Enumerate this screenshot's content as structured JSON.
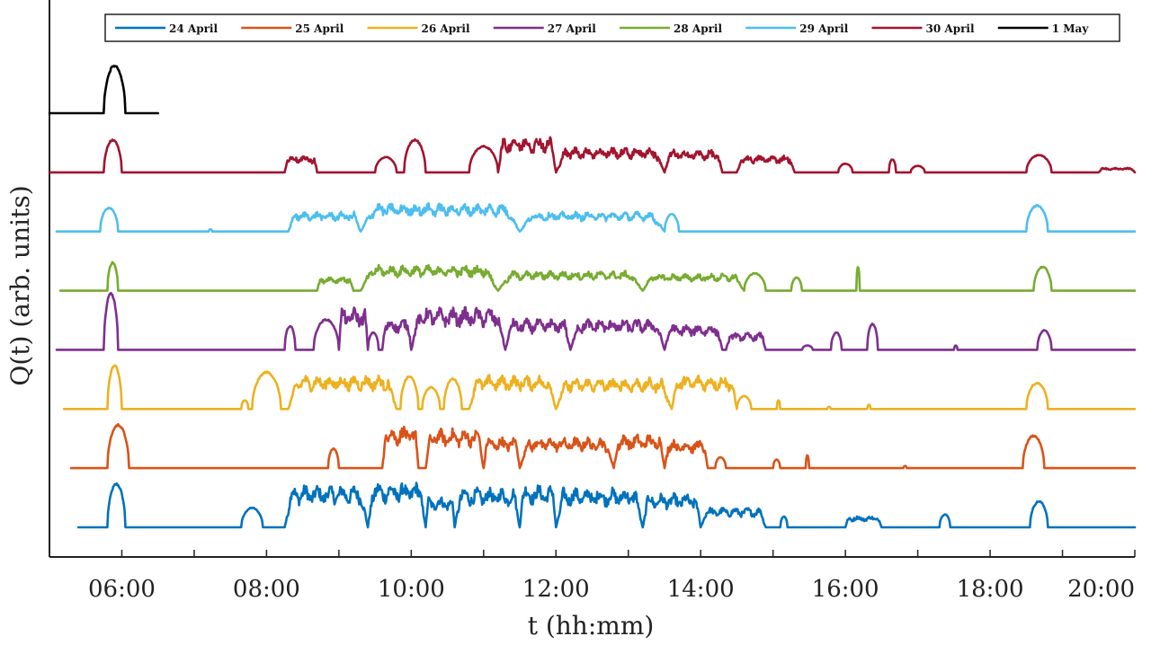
{
  "chart_data": {
    "type": "line",
    "title": "",
    "xlabel": "t (hh:mm)",
    "ylabel": "Q(t) (arb. units)",
    "xlim": [
      "05:00",
      "20:00"
    ],
    "xlim_hours": [
      5,
      20
    ],
    "x_ticks": [
      "06:00",
      "08:00",
      "10:00",
      "12:00",
      "14:00",
      "16:00",
      "18:00",
      "20:00"
    ],
    "y_ticks": [],
    "stacked_offsets": true,
    "legend_position": "top",
    "series": [
      {
        "name": "24 April",
        "color": "#0072BD",
        "start": 5.4,
        "end": 20.0,
        "active_segments": [
          [
            5.8,
            6.05,
            1.0
          ],
          [
            7.65,
            7.95,
            0.45
          ],
          [
            8.25,
            9.4,
            0.75
          ],
          [
            9.4,
            10.2,
            0.8
          ],
          [
            10.2,
            10.6,
            0.55
          ],
          [
            10.6,
            11.5,
            0.7
          ],
          [
            11.5,
            12.0,
            0.75
          ],
          [
            12.0,
            13.2,
            0.7
          ],
          [
            13.2,
            14.0,
            0.6
          ],
          [
            14.0,
            14.9,
            0.35
          ],
          [
            15.1,
            15.2,
            0.25
          ],
          [
            16.0,
            16.5,
            0.2
          ],
          [
            17.3,
            17.45,
            0.3
          ],
          [
            18.55,
            18.8,
            0.6
          ]
        ]
      },
      {
        "name": "25 April",
        "color": "#D95319",
        "start": 5.3,
        "end": 20.0,
        "active_segments": [
          [
            5.8,
            6.1,
            1.0
          ],
          [
            8.85,
            9.0,
            0.45
          ],
          [
            9.6,
            10.1,
            0.75
          ],
          [
            10.2,
            11.0,
            0.7
          ],
          [
            11.0,
            11.5,
            0.55
          ],
          [
            11.5,
            12.8,
            0.55
          ],
          [
            12.8,
            13.5,
            0.6
          ],
          [
            13.5,
            14.1,
            0.5
          ],
          [
            14.2,
            14.35,
            0.25
          ],
          [
            15.0,
            15.1,
            0.2
          ],
          [
            15.45,
            15.5,
            0.3
          ],
          [
            16.8,
            16.85,
            0.05
          ],
          [
            18.45,
            18.75,
            0.75
          ]
        ]
      },
      {
        "name": "26 April",
        "color": "#EDB120",
        "start": 5.2,
        "end": 20.0,
        "active_segments": [
          [
            5.8,
            6.0,
            1.0
          ],
          [
            7.65,
            7.75,
            0.2
          ],
          [
            7.8,
            8.2,
            0.85
          ],
          [
            8.3,
            9.8,
            0.6
          ],
          [
            9.85,
            10.1,
            0.75
          ],
          [
            10.15,
            10.4,
            0.5
          ],
          [
            10.45,
            10.7,
            0.7
          ],
          [
            10.8,
            12.0,
            0.6
          ],
          [
            12.0,
            13.6,
            0.55
          ],
          [
            13.6,
            14.5,
            0.6
          ],
          [
            14.5,
            14.7,
            0.3
          ],
          [
            15.05,
            15.1,
            0.2
          ],
          [
            15.75,
            15.8,
            0.05
          ],
          [
            16.3,
            16.35,
            0.1
          ],
          [
            18.5,
            18.8,
            0.6
          ]
        ]
      },
      {
        "name": "27 April",
        "color": "#7E2F8E",
        "start": 5.1,
        "end": 20.0,
        "active_segments": [
          [
            5.75,
            5.95,
            1.3
          ],
          [
            8.25,
            8.4,
            0.55
          ],
          [
            8.65,
            9.0,
            0.7
          ],
          [
            9.0,
            9.4,
            0.75
          ],
          [
            9.4,
            9.55,
            0.4
          ],
          [
            9.6,
            10.0,
            0.55
          ],
          [
            10.0,
            11.3,
            0.75
          ],
          [
            11.3,
            12.2,
            0.55
          ],
          [
            12.2,
            13.5,
            0.55
          ],
          [
            13.5,
            14.3,
            0.45
          ],
          [
            14.35,
            14.9,
            0.3
          ],
          [
            15.4,
            15.55,
            0.1
          ],
          [
            15.8,
            15.95,
            0.4
          ],
          [
            16.3,
            16.45,
            0.6
          ],
          [
            17.5,
            17.55,
            0.1
          ],
          [
            18.65,
            18.85,
            0.45
          ]
        ]
      },
      {
        "name": "28 April",
        "color": "#77AC30",
        "start": 5.15,
        "end": 20.0,
        "active_segments": [
          [
            5.8,
            5.95,
            0.65
          ],
          [
            8.7,
            9.2,
            0.25
          ],
          [
            9.3,
            11.2,
            0.45
          ],
          [
            11.2,
            13.2,
            0.35
          ],
          [
            13.2,
            14.6,
            0.3
          ],
          [
            14.6,
            14.9,
            0.4
          ],
          [
            15.25,
            15.4,
            0.3
          ],
          [
            16.15,
            16.2,
            0.55
          ],
          [
            18.6,
            18.85,
            0.55
          ]
        ]
      },
      {
        "name": "29 April",
        "color": "#4DBEEE",
        "start": 5.1,
        "end": 20.0,
        "active_segments": [
          [
            5.7,
            5.95,
            0.55
          ],
          [
            7.2,
            7.25,
            0.05
          ],
          [
            8.3,
            9.3,
            0.35
          ],
          [
            9.3,
            11.5,
            0.5
          ],
          [
            11.5,
            13.5,
            0.35
          ],
          [
            13.5,
            13.7,
            0.4
          ],
          [
            18.5,
            18.8,
            0.6
          ]
        ]
      },
      {
        "name": "30 April",
        "color": "#A2142F",
        "start": 5.0,
        "end": 20.0,
        "active_segments": [
          [
            5.75,
            6.0,
            0.75
          ],
          [
            8.25,
            8.7,
            0.3
          ],
          [
            9.5,
            9.8,
            0.35
          ],
          [
            9.9,
            10.2,
            0.75
          ],
          [
            10.8,
            11.2,
            0.6
          ],
          [
            11.2,
            12.0,
            0.65
          ],
          [
            12.0,
            13.5,
            0.45
          ],
          [
            13.5,
            14.3,
            0.4
          ],
          [
            14.5,
            15.3,
            0.3
          ],
          [
            15.9,
            16.1,
            0.2
          ],
          [
            16.6,
            16.7,
            0.3
          ],
          [
            16.9,
            17.1,
            0.15
          ],
          [
            18.5,
            18.85,
            0.4
          ],
          [
            19.5,
            20.0,
            0.08
          ]
        ]
      },
      {
        "name": "1 May",
        "color": "#000000",
        "start": 5.0,
        "end": 6.5,
        "active_segments": [
          [
            5.75,
            6.05,
            1.1
          ]
        ]
      }
    ]
  }
}
